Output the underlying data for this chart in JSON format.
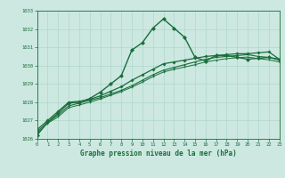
{
  "xlabel": "Graphe pression niveau de la mer (hPa)",
  "bg_color": "#cce8e0",
  "grid_color": "#b0d8cc",
  "line_color": "#1a6e3c",
  "ylim": [
    1026,
    1033
  ],
  "xlim": [
    0,
    23
  ],
  "yticks": [
    1026,
    1027,
    1028,
    1029,
    1030,
    1031,
    1032,
    1033
  ],
  "xticks": [
    0,
    1,
    2,
    3,
    4,
    5,
    6,
    7,
    8,
    9,
    10,
    11,
    12,
    13,
    14,
    15,
    16,
    17,
    18,
    19,
    20,
    21,
    22,
    23
  ],
  "series": [
    {
      "x": [
        0,
        1,
        2,
        3,
        4,
        5,
        6,
        7,
        8,
        9,
        10,
        11,
        12,
        13,
        14,
        15,
        16,
        17,
        18,
        19,
        20,
        21,
        22,
        23
      ],
      "y": [
        1026.2,
        1026.9,
        1027.4,
        1027.95,
        1028.0,
        1028.2,
        1028.55,
        1029.0,
        1029.45,
        1030.85,
        1031.25,
        1032.05,
        1032.55,
        1032.05,
        1031.55,
        1030.45,
        1030.25,
        1030.55,
        1030.55,
        1030.45,
        1030.35,
        1030.4,
        1030.45,
        1030.35
      ],
      "marker": "D",
      "markersize": 2.0,
      "linewidth": 1.0
    },
    {
      "x": [
        0,
        1,
        2,
        3,
        4,
        5,
        6,
        7,
        8,
        9,
        10,
        11,
        12,
        13,
        14,
        15,
        16,
        17,
        18,
        19,
        20,
        21,
        22,
        23
      ],
      "y": [
        1026.5,
        1027.0,
        1027.5,
        1028.0,
        1028.05,
        1028.15,
        1028.35,
        1028.6,
        1028.85,
        1029.2,
        1029.5,
        1029.8,
        1030.1,
        1030.2,
        1030.3,
        1030.4,
        1030.5,
        1030.55,
        1030.6,
        1030.65,
        1030.65,
        1030.7,
        1030.75,
        1030.35
      ],
      "marker": "P",
      "markersize": 2.0,
      "linewidth": 0.9
    },
    {
      "x": [
        0,
        1,
        2,
        3,
        4,
        5,
        6,
        7,
        8,
        9,
        10,
        11,
        12,
        13,
        14,
        15,
        16,
        17,
        18,
        19,
        20,
        21,
        22,
        23
      ],
      "y": [
        1026.4,
        1026.9,
        1027.3,
        1027.8,
        1027.95,
        1028.1,
        1028.25,
        1028.45,
        1028.65,
        1028.9,
        1029.2,
        1029.5,
        1029.75,
        1029.9,
        1030.05,
        1030.2,
        1030.35,
        1030.45,
        1030.5,
        1030.55,
        1030.6,
        1030.5,
        1030.45,
        1030.3
      ],
      "marker": ".",
      "markersize": 2.0,
      "linewidth": 0.8
    },
    {
      "x": [
        0,
        1,
        2,
        3,
        4,
        5,
        6,
        7,
        8,
        9,
        10,
        11,
        12,
        13,
        14,
        15,
        16,
        17,
        18,
        19,
        20,
        21,
        22,
        23
      ],
      "y": [
        1026.3,
        1026.85,
        1027.2,
        1027.7,
        1027.85,
        1028.0,
        1028.18,
        1028.38,
        1028.58,
        1028.82,
        1029.1,
        1029.4,
        1029.65,
        1029.8,
        1029.92,
        1030.05,
        1030.2,
        1030.3,
        1030.38,
        1030.43,
        1030.47,
        1030.38,
        1030.32,
        1030.2
      ],
      "marker": ".",
      "markersize": 1.5,
      "linewidth": 0.7
    }
  ]
}
